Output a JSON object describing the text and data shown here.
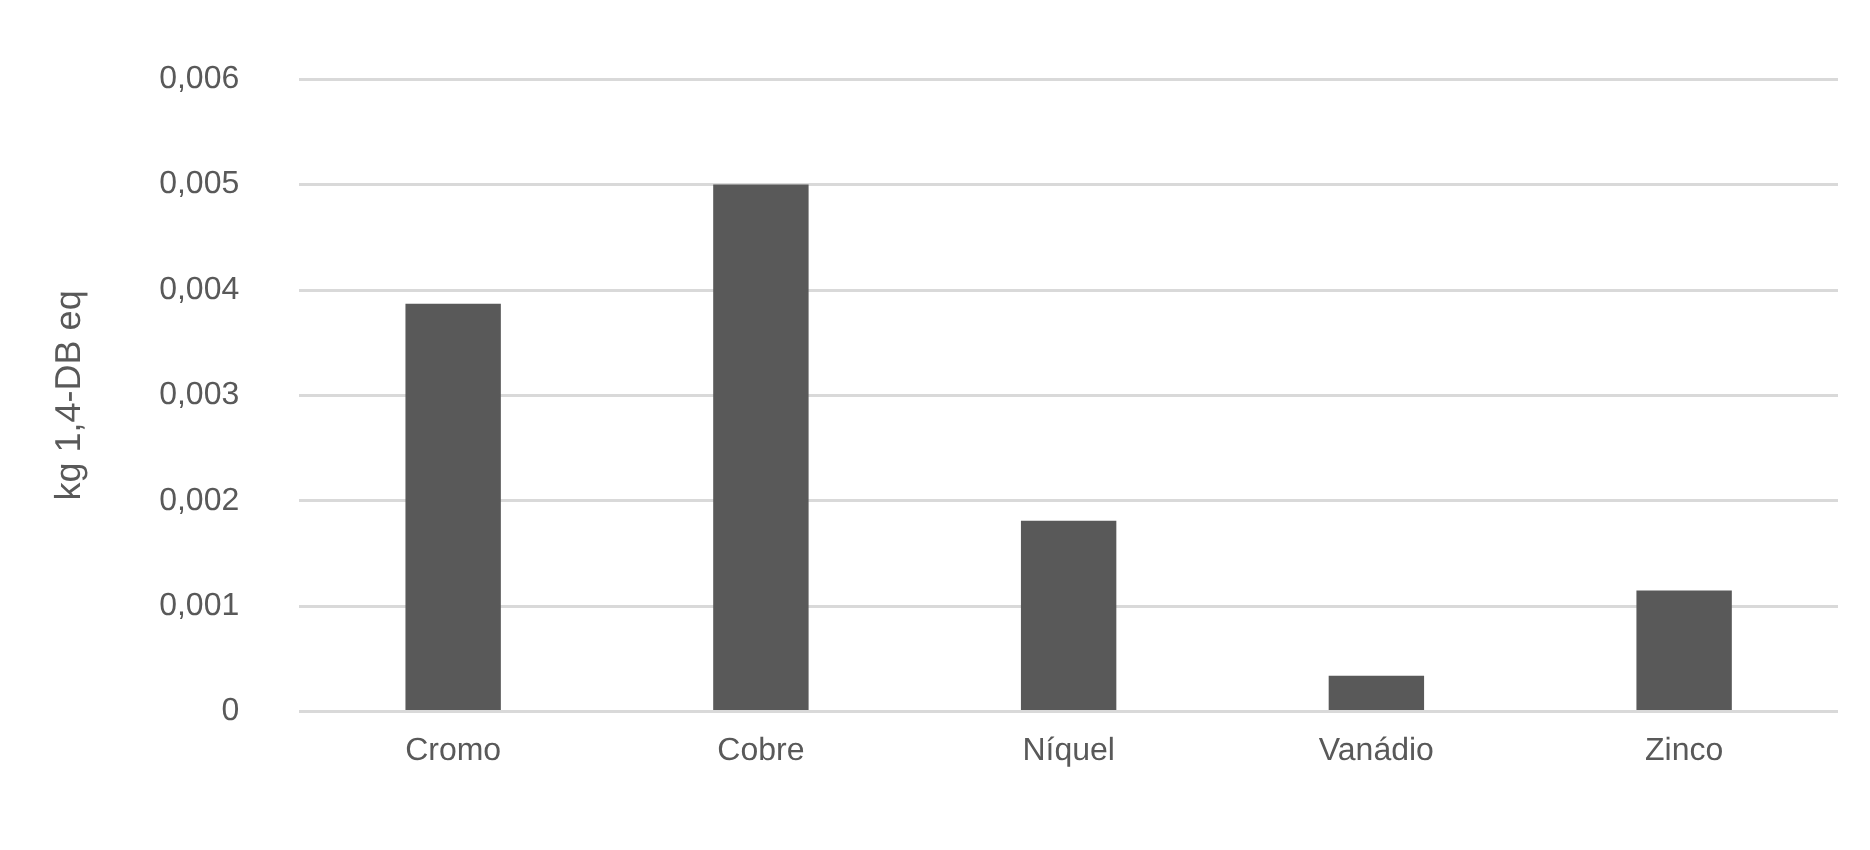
{
  "chart_data": {
    "type": "bar",
    "ylabel": "kg 1,4-DB eq",
    "categories": [
      "Cromo",
      "Cobre",
      "Níquel",
      "Vanádio",
      "Zinco"
    ],
    "values": [
      0.00387,
      0.005,
      0.00181,
      0.00034,
      0.00115
    ],
    "color": "#595959",
    "ylim": [
      0,
      0.006
    ],
    "yticks": [
      {
        "value": 0,
        "label": "0"
      },
      {
        "value": 0.001,
        "label": "0,001"
      },
      {
        "value": 0.002,
        "label": "0,002"
      },
      {
        "value": 0.003,
        "label": "0,003"
      },
      {
        "value": 0.004,
        "label": "0,004"
      },
      {
        "value": 0.005,
        "label": "0,005"
      },
      {
        "value": 0.006,
        "label": "0,006"
      }
    ],
    "grid": "y",
    "legend": false
  }
}
